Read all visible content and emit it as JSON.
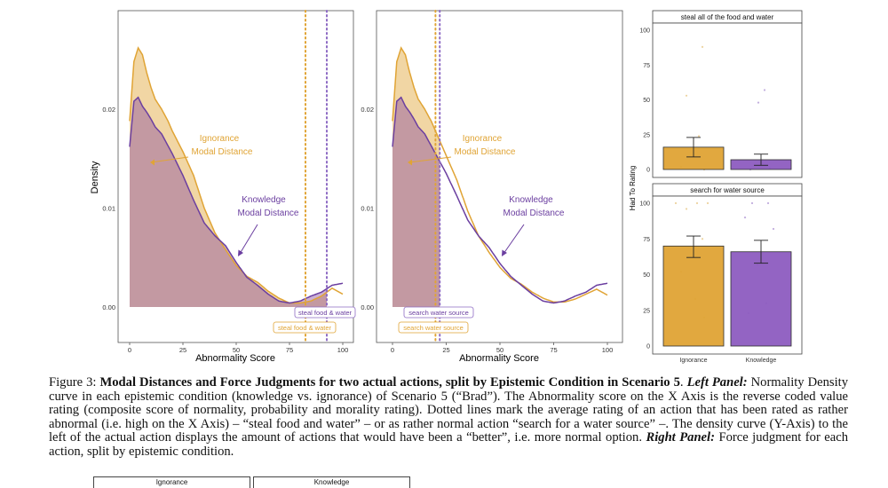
{
  "left_panel": {
    "ylabel": "Density",
    "xlabel": "Abnormality Score",
    "x_ticks": [
      "0",
      "25",
      "50",
      "75",
      "100"
    ],
    "y_ticks": [
      "0.00",
      "0.01",
      "0.02"
    ],
    "plots": [
      {
        "annotations": {
          "ignorance": [
            "Ignorance",
            "Modal Distance"
          ],
          "knowledge": [
            "Knowledge",
            "Modal Distance"
          ]
        },
        "action_labels": {
          "knowledge": "steal food & water",
          "ignorance": "steal food & water"
        }
      },
      {
        "annotations": {
          "ignorance": [
            "Ignorance",
            "Modal Distance"
          ],
          "knowledge": [
            "Knowledge",
            "Modal Distance"
          ]
        },
        "action_labels": {
          "knowledge": "search water source",
          "ignorance": "search water source"
        }
      }
    ]
  },
  "right_panel": {
    "ylabel": "Had To Rating",
    "y_ticks": [
      "0",
      "25",
      "50",
      "75",
      "100"
    ],
    "x_categories": [
      "Ignorance",
      "Knowledge"
    ],
    "facets": [
      {
        "title": "steal all of the food and water"
      },
      {
        "title": "search for water source"
      }
    ]
  },
  "caption": {
    "figure_label": "Figure 3:",
    "title": "Modal Distances and Force Judgments for two actual actions, split by Epistemic Condition in Scenario 5",
    "left_label": "Left Panel:",
    "body1": "Normality Density curve in each epistemic condition (knowledge vs. ignorance) of Scenario 5 (“Brad”). The Abnormality score on the X Axis is the reverse coded value rating (composite score of normality, probability and morality rating). Dotted lines mark the average rating of an action that has been rated as rather abnormal (i.e. high on the X Axis) – “steal food and water” – or as rather normal action “search for a water source” –. The density curve (Y-Axis) to the left of the actual action displays the amount of actions that would have been a “better”, i.e. more normal option.",
    "right_label": "Right Panel:",
    "body2": "Force judgment for each action, split by epistemic condition."
  },
  "next_figure": {
    "labels": [
      "Ignorance",
      "Knowledge"
    ]
  },
  "chart_data": [
    {
      "type": "area",
      "title": "",
      "xlabel": "Abnormality Score",
      "ylabel": "Density",
      "xlim": [
        0,
        100
      ],
      "ylim": [
        0,
        0.027
      ],
      "series": [
        {
          "name": "Ignorance",
          "color": "#E0A435",
          "x": [
            0,
            2,
            4,
            6,
            8,
            10,
            12,
            15,
            18,
            20,
            25,
            30,
            35,
            40,
            45,
            50,
            55,
            60,
            65,
            70,
            75,
            80,
            85,
            90,
            95,
            100
          ],
          "y": [
            0.0188,
            0.0248,
            0.0262,
            0.0255,
            0.0237,
            0.0222,
            0.021,
            0.02,
            0.0188,
            0.0178,
            0.0157,
            0.0133,
            0.01,
            0.0075,
            0.0058,
            0.0042,
            0.0031,
            0.0025,
            0.0016,
            0.0009,
            0.0004,
            0.0004,
            0.0006,
            0.0011,
            0.0019,
            0.0013
          ]
        },
        {
          "name": "Knowledge",
          "color": "#6B3FA0",
          "x": [
            0,
            2,
            4,
            6,
            8,
            10,
            12,
            15,
            18,
            20,
            25,
            30,
            35,
            40,
            45,
            50,
            55,
            60,
            65,
            70,
            75,
            80,
            85,
            90,
            95,
            100
          ],
          "y": [
            0.0162,
            0.0208,
            0.0212,
            0.0203,
            0.0197,
            0.019,
            0.0182,
            0.0175,
            0.0163,
            0.0155,
            0.0133,
            0.0108,
            0.0085,
            0.0072,
            0.0062,
            0.0045,
            0.003,
            0.0022,
            0.0013,
            0.0006,
            0.0004,
            0.0006,
            0.0011,
            0.0015,
            0.0022,
            0.0024
          ]
        }
      ],
      "vlines": [
        {
          "x": 82.5,
          "color": "#E0A435",
          "style": "dotted"
        },
        {
          "x": 92.5,
          "color": "#8E6BC4",
          "style": "dotted"
        }
      ],
      "shaded_to_x": 92.5
    },
    {
      "type": "area",
      "title": "",
      "xlabel": "Abnormality Score",
      "ylabel": "",
      "xlim": [
        0,
        100
      ],
      "ylim": [
        0,
        0.027
      ],
      "series": [
        {
          "name": "Ignorance",
          "color": "#E0A435",
          "x": [
            0,
            2,
            4,
            6,
            8,
            10,
            12,
            15,
            18,
            20,
            25,
            30,
            35,
            40,
            45,
            50,
            55,
            60,
            65,
            70,
            75,
            80,
            85,
            90,
            95,
            100
          ],
          "y": [
            0.0188,
            0.0248,
            0.0262,
            0.0255,
            0.0237,
            0.0222,
            0.021,
            0.02,
            0.0188,
            0.0178,
            0.0153,
            0.0128,
            0.0097,
            0.0072,
            0.0055,
            0.004,
            0.0029,
            0.0023,
            0.0015,
            0.0009,
            0.0005,
            0.0005,
            0.0008,
            0.0013,
            0.0018,
            0.0012
          ]
        },
        {
          "name": "Knowledge",
          "color": "#6B3FA0",
          "x": [
            0,
            2,
            4,
            6,
            8,
            10,
            12,
            15,
            18,
            20,
            25,
            30,
            35,
            40,
            45,
            50,
            55,
            60,
            65,
            70,
            75,
            80,
            85,
            90,
            95,
            100
          ],
          "y": [
            0.0162,
            0.0208,
            0.0212,
            0.0203,
            0.0197,
            0.019,
            0.0182,
            0.0175,
            0.0163,
            0.0155,
            0.0135,
            0.0112,
            0.0088,
            0.0072,
            0.006,
            0.0044,
            0.0031,
            0.0022,
            0.0013,
            0.0006,
            0.0004,
            0.0006,
            0.0011,
            0.0015,
            0.0022,
            0.0024
          ]
        }
      ],
      "vlines": [
        {
          "x": 20,
          "color": "#E0A435",
          "style": "dotted"
        },
        {
          "x": 22,
          "color": "#8E6BC4",
          "style": "dotted"
        }
      ],
      "shaded_to_x": 22
    },
    {
      "type": "bar",
      "title": "steal all of the food and water",
      "xlabel": "",
      "ylabel": "Had To Rating",
      "ylim": [
        0,
        100
      ],
      "categories": [
        "Ignorance",
        "Knowledge"
      ],
      "values": [
        16,
        7
      ],
      "error": [
        [
          9,
          23
        ],
        [
          3,
          11
        ]
      ],
      "colors": [
        "#E0A435",
        "#8E5CC0"
      ]
    },
    {
      "type": "bar",
      "title": "search for water source",
      "xlabel": "",
      "ylabel": "Had To Rating",
      "ylim": [
        0,
        100
      ],
      "categories": [
        "Ignorance",
        "Knowledge"
      ],
      "values": [
        70,
        66
      ],
      "error": [
        [
          62,
          77
        ],
        [
          58,
          74
        ]
      ],
      "colors": [
        "#E0A435",
        "#8E5CC0"
      ]
    }
  ]
}
